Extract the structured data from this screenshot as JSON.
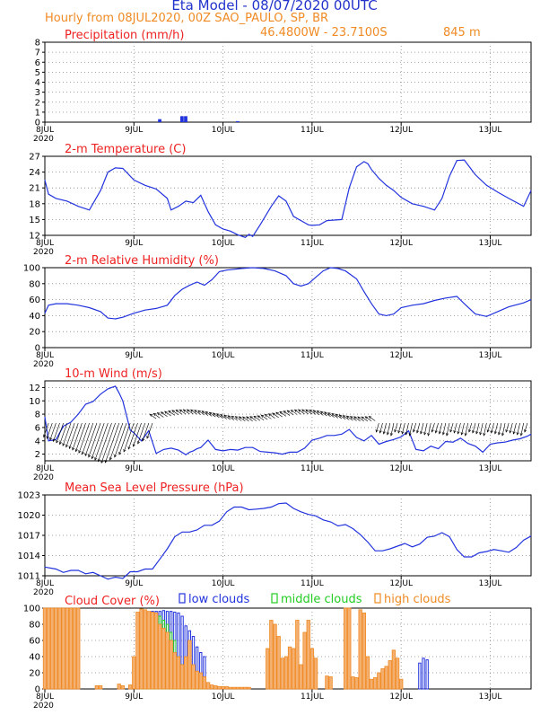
{
  "header": {
    "title": "Eta Model - 08/07/2020 00UTC",
    "subtitle": "Hourly from 08JUL2020, 00Z  SAO_PAULO, SP, BR",
    "coords": "46.4800W - 23.7100S",
    "elevation": "845  m"
  },
  "colors": {
    "title": "#2233cc",
    "orange": "#f08a24",
    "red": "#ee2222",
    "line": "#2233dd",
    "low": "#2233dd",
    "middle": "#22cc22",
    "high": "#f08a24",
    "arrow": "#000000"
  },
  "x_axis": {
    "range_hours": [
      0,
      131
    ],
    "tick_labels": [
      "8JUL",
      "9JUL",
      "10JUL",
      "11JUL",
      "12JUL",
      "13JUL"
    ],
    "tick_hours": [
      0,
      24,
      48,
      72,
      96,
      120
    ],
    "year_label": "2020"
  },
  "legend": {
    "low": "low clouds",
    "middle": "middle clouds",
    "high": "high clouds"
  },
  "chart_data": [
    {
      "type": "bar",
      "title": "Precipitation (mm/h)",
      "ylim": [
        0,
        8
      ],
      "yticks": [
        "0",
        "1",
        "2",
        "3",
        "4",
        "5",
        "6",
        "7",
        "8"
      ],
      "x": [
        31,
        37,
        38,
        52
      ],
      "values": [
        0.3,
        0.6,
        0.6,
        0.1
      ]
    },
    {
      "type": "line",
      "title": "2-m Temperature (C)",
      "ylim": [
        12,
        27
      ],
      "yticks": [
        "12",
        "15",
        "18",
        "21",
        "24",
        "27"
      ],
      "x": [
        0,
        1,
        3,
        6,
        9,
        12,
        15,
        17,
        19,
        21,
        24,
        27,
        30,
        33,
        34,
        36,
        38,
        40,
        42,
        44,
        46,
        48,
        50,
        52,
        54,
        55,
        56,
        58,
        61,
        63,
        65,
        67,
        69,
        71,
        72,
        74,
        76,
        78,
        80,
        82,
        84,
        86,
        87,
        88,
        90,
        92,
        94,
        96,
        99,
        102,
        105,
        107,
        109,
        111,
        113,
        116,
        119,
        122,
        125,
        129,
        131
      ],
      "values": [
        22.5,
        19.8,
        19.0,
        18.5,
        17.5,
        16.8,
        20.5,
        24.0,
        24.8,
        24.7,
        22.5,
        21.5,
        20.8,
        19.0,
        16.8,
        17.5,
        18.5,
        18.2,
        19.6,
        16.5,
        14.0,
        13.2,
        12.8,
        12.1,
        11.6,
        12.2,
        11.8,
        14.0,
        17.5,
        19.5,
        18.5,
        15.6,
        14.8,
        14.0,
        13.9,
        14.0,
        14.8,
        14.9,
        15.0,
        21.0,
        25.0,
        26.0,
        25.6,
        24.5,
        22.8,
        21.5,
        20.5,
        19.2,
        18.0,
        17.5,
        16.8,
        19.0,
        23.2,
        26.2,
        26.3,
        23.5,
        21.5,
        20.2,
        19.0,
        17.5,
        20.5
      ]
    },
    {
      "type": "line",
      "title": "2-m Relative Humidity (%)",
      "ylim": [
        0,
        100
      ],
      "yticks": [
        "0",
        "20",
        "40",
        "60",
        "80",
        "100"
      ],
      "x": [
        0,
        1,
        3,
        6,
        9,
        12,
        15,
        17,
        19,
        21,
        24,
        27,
        30,
        33,
        35,
        37,
        39,
        41,
        43,
        45,
        47,
        49,
        51,
        53,
        56,
        59,
        62,
        65,
        67,
        69,
        71,
        73,
        75,
        77,
        79,
        81,
        84,
        86,
        88,
        90,
        92,
        94,
        96,
        99,
        102,
        105,
        108,
        111,
        113,
        116,
        119,
        122,
        125,
        129,
        131
      ],
      "values": [
        43,
        53,
        55,
        55,
        53,
        50,
        45,
        37,
        36,
        38,
        43,
        47,
        49,
        53,
        65,
        73,
        78,
        82,
        78,
        85,
        95,
        97,
        98,
        99,
        100,
        99,
        96,
        90,
        80,
        77,
        80,
        88,
        96,
        100,
        99,
        96,
        86,
        70,
        55,
        42,
        40,
        42,
        50,
        53,
        55,
        59,
        62,
        64,
        55,
        42,
        39,
        45,
        51,
        56,
        60
      ]
    },
    {
      "type": "line",
      "title": "10-m Wind (m/s)",
      "ylim": [
        1,
        13
      ],
      "yticks": [
        "2",
        "4",
        "6",
        "8",
        "10",
        "12"
      ],
      "x": [
        0,
        1,
        3,
        5,
        7,
        9,
        11,
        13,
        15,
        17,
        19,
        20,
        21,
        23,
        24,
        26,
        28,
        30,
        32,
        34,
        36,
        38,
        39,
        40,
        41,
        42,
        44,
        46,
        48,
        50,
        52,
        54,
        56,
        58,
        60,
        62,
        64,
        66,
        68,
        70,
        72,
        74,
        76,
        78,
        80,
        82,
        84,
        86,
        88,
        90,
        92,
        94,
        96,
        98,
        100,
        102,
        104,
        106,
        108,
        110,
        112,
        114,
        116,
        118,
        120,
        122,
        124,
        126,
        128,
        130,
        131
      ],
      "values": [
        7.6,
        4.0,
        4.2,
        6.2,
        6.8,
        8.0,
        9.5,
        9.9,
        11.0,
        11.8,
        12.2,
        11.2,
        10.0,
        5.6,
        5.2,
        4.0,
        5.5,
        2.1,
        2.7,
        2.9,
        2.6,
        1.9,
        2.3,
        2.5,
        2.8,
        3.0,
        4.1,
        2.7,
        2.5,
        2.7,
        2.6,
        3.0,
        3.0,
        2.4,
        2.3,
        2.2,
        2.0,
        2.3,
        2.3,
        2.9,
        4.1,
        4.4,
        4.8,
        4.8,
        5.0,
        5.7,
        4.5,
        4.0,
        4.8,
        3.5,
        3.9,
        4.2,
        4.6,
        5.5,
        2.7,
        2.5,
        3.2,
        2.8,
        3.9,
        3.8,
        4.4,
        3.6,
        3.2,
        2.3,
        3.5,
        3.7,
        3.8,
        4.1,
        4.3,
        4.7,
        5.0
      ]
    },
    {
      "type": "line",
      "title": "Mean Sea Level Pressure (hPa)",
      "ylim": [
        1011,
        1023
      ],
      "yticks": [
        "1011",
        "1014",
        "1017",
        "1020",
        "1023"
      ],
      "x": [
        0,
        3,
        5,
        7,
        9,
        11,
        13,
        15,
        17,
        19,
        21,
        23,
        25,
        27,
        29,
        31,
        33,
        35,
        37,
        39,
        41,
        43,
        45,
        47,
        49,
        51,
        53,
        55,
        57,
        59,
        61,
        63,
        65,
        67,
        69,
        71,
        73,
        75,
        77,
        79,
        81,
        83,
        85,
        87,
        89,
        91,
        93,
        95,
        97,
        99,
        101,
        103,
        105,
        107,
        109,
        111,
        113,
        115,
        117,
        119,
        121,
        123,
        125,
        127,
        129,
        131
      ],
      "values": [
        1012.3,
        1012.0,
        1011.5,
        1011.8,
        1011.8,
        1011.3,
        1011.5,
        1011.0,
        1010.5,
        1010.8,
        1010.6,
        1011.6,
        1011.6,
        1012.0,
        1012.0,
        1013.5,
        1015.0,
        1016.8,
        1017.5,
        1017.5,
        1017.8,
        1018.5,
        1018.5,
        1019.1,
        1020.5,
        1021.2,
        1021.2,
        1020.8,
        1020.9,
        1021.0,
        1021.2,
        1021.7,
        1021.8,
        1021.0,
        1020.5,
        1020.1,
        1019.9,
        1019.3,
        1019.0,
        1018.4,
        1018.6,
        1018.0,
        1017.1,
        1016.0,
        1014.7,
        1014.7,
        1015.0,
        1015.4,
        1015.8,
        1015.3,
        1015.7,
        1016.7,
        1016.9,
        1017.4,
        1016.8,
        1014.9,
        1013.8,
        1013.8,
        1014.4,
        1014.6,
        1014.9,
        1014.7,
        1014.5,
        1015.2,
        1016.3,
        1016.9
      ]
    },
    {
      "type": "bar",
      "title": "Cloud Cover (%)",
      "ylim": [
        0,
        100
      ],
      "yticks": [
        "0",
        "20",
        "40",
        "60",
        "80",
        "100"
      ],
      "x": [
        0,
        1,
        2,
        3,
        4,
        5,
        6,
        7,
        8,
        9,
        14,
        15,
        20,
        21,
        23,
        24,
        25,
        26,
        27,
        28,
        29,
        30,
        31,
        32,
        33,
        34,
        35,
        36,
        37,
        38,
        39,
        40,
        41,
        42,
        43,
        44,
        45,
        46,
        47,
        48,
        49,
        50,
        51,
        52,
        53,
        54,
        55,
        60,
        61,
        62,
        63,
        64,
        65,
        66,
        67,
        68,
        69,
        70,
        71,
        72,
        73,
        76,
        77,
        81,
        82,
        83,
        84,
        85,
        86,
        87,
        88,
        89,
        90,
        91,
        92,
        93,
        94,
        95,
        96,
        101,
        102,
        103
      ],
      "series": [
        {
          "name": "low",
          "values": [
            0,
            0,
            0,
            0,
            0,
            0,
            0,
            0,
            0,
            0,
            0,
            0,
            0,
            0,
            0,
            0,
            0,
            70,
            95,
            95,
            96,
            96,
            96,
            97,
            96,
            96,
            95,
            94,
            90,
            78,
            72,
            65,
            52,
            45,
            40,
            5,
            0,
            0,
            0,
            0,
            0,
            0,
            0,
            0,
            0,
            0,
            0,
            0,
            0,
            0,
            0,
            0,
            0,
            0,
            0,
            0,
            0,
            0,
            0,
            0,
            0,
            0,
            0,
            0,
            0,
            0,
            0,
            0,
            0,
            0,
            0,
            0,
            0,
            0,
            0,
            0,
            0,
            0,
            0,
            32,
            38,
            36
          ]
        },
        {
          "name": "middle",
          "values": [
            0,
            0,
            0,
            0,
            0,
            0,
            0,
            0,
            0,
            0,
            0,
            0,
            0,
            0,
            0,
            0,
            0,
            60,
            85,
            90,
            92,
            92,
            90,
            85,
            80,
            70,
            60,
            40,
            30,
            20,
            15,
            10,
            10,
            8,
            5,
            0,
            0,
            0,
            0,
            0,
            0,
            0,
            0,
            0,
            0,
            0,
            0,
            0,
            0,
            0,
            0,
            0,
            0,
            0,
            0,
            0,
            0,
            0,
            0,
            0,
            0,
            0,
            0,
            0,
            0,
            0,
            0,
            0,
            0,
            0,
            0,
            0,
            0,
            0,
            0,
            0,
            0,
            0,
            0,
            0,
            0,
            0
          ]
        },
        {
          "name": "high",
          "values": [
            100,
            100,
            100,
            100,
            100,
            100,
            100,
            100,
            100,
            100,
            4,
            4,
            6,
            4,
            5,
            40,
            95,
            99,
            98,
            96,
            95,
            94,
            80,
            75,
            70,
            60,
            45,
            40,
            30,
            40,
            60,
            30,
            22,
            20,
            15,
            8,
            5,
            4,
            3,
            3,
            3,
            2,
            2,
            2,
            2,
            2,
            2,
            50,
            85,
            80,
            65,
            38,
            40,
            52,
            50,
            85,
            30,
            70,
            85,
            50,
            38,
            16,
            15,
            100,
            100,
            15,
            14,
            98,
            94,
            40,
            12,
            14,
            20,
            25,
            28,
            35,
            48,
            38,
            12,
            0,
            0,
            0
          ]
        }
      ]
    }
  ]
}
